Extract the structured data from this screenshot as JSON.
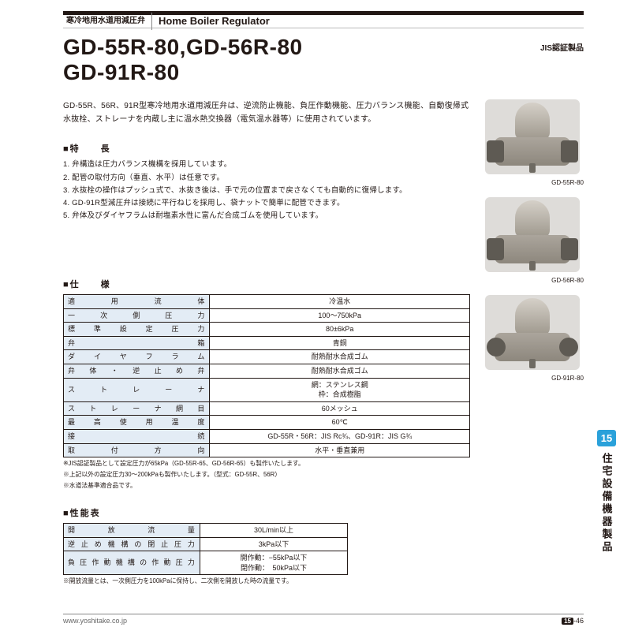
{
  "header": {
    "jp": "寒冷地用水道用減圧弁",
    "en": "Home Boiler Regulator"
  },
  "title_lines": [
    "GD-55R-80,GD-56R-80",
    "GD-91R-80"
  ],
  "cert": "JIS認証製品",
  "description": "GD-55R、56R、91R型寒冷地用水道用減圧弁は、逆流防止機能、負圧作動機能、圧力バランス機能、自動復帰式水抜栓、ストレーナを内蔵し主に温水熱交換器（電気温水器等）に使用されています。",
  "sec_features": "■特　　長",
  "features": [
    "1. 弁構造は圧力バランス機構を採用しています。",
    "2. 配管の取付方向（垂直、水平）は任意です。",
    "3. 水抜栓の操作はプッシュ式で、水抜き後は、手で元の位置まで戻さなくても自動的に復帰します。",
    "4. GD-91R型減圧弁は接続に平行ねじを採用し、袋ナットで簡単に配管できます。",
    "5. 弁体及びダイヤフラムは耐塩素水性に富んだ合成ゴムを使用しています。"
  ],
  "sec_spec": "■仕　　様",
  "spec_rows": [
    {
      "k": "適用流体",
      "v": "冷温水"
    },
    {
      "k": "一次側圧力",
      "v": "100〜750kPa"
    },
    {
      "k": "標準設定圧力",
      "v": "80±6kPa"
    },
    {
      "k": "弁箱",
      "v": "青銅"
    },
    {
      "k": "ダイヤフラム",
      "v": "耐熱耐水合成ゴム"
    },
    {
      "k": "弁体・逆止め弁",
      "v": "耐熱耐水合成ゴム"
    },
    {
      "k": "ストレーナ",
      "v": "網：ステンレス鋼\n枠：合成樹脂"
    },
    {
      "k": "ストレーナ網目",
      "v": "60メッシュ"
    },
    {
      "k": "最高使用温度",
      "v": "60℃"
    },
    {
      "k": "接続",
      "v": "GD-55R・56R：JIS Rc¾、GD-91R：JIS G¾"
    },
    {
      "k": "取付方向",
      "v": "水平・垂直兼用"
    }
  ],
  "spec_notes": [
    "※JIS認証製品として設定圧力が65kPa（GD-55R-65、GD-56R-65）も製作いたします。",
    "※上記以外の設定圧力30〜200kPaも製作いたします。（型式：GD-55R、56R）",
    "※水道法基準適合品です。"
  ],
  "sec_perf": "■性能表",
  "perf_rows": [
    {
      "k": "開放流量",
      "v": "30L/min以上"
    },
    {
      "k": "逆止め機構の閉止圧力",
      "v": "3kPa以下"
    },
    {
      "k": "負圧作動機構の作動圧力",
      "v": "開作動：−55kPa以下\n閉作動：　50kPa以下"
    }
  ],
  "perf_note": "※開放流量とは、一次側圧力を100kPaに保持し、二次側を開放した時の流量です。",
  "products": [
    {
      "label": "GD-55R-80"
    },
    {
      "label": "GD-56R-80"
    },
    {
      "label": "GD-91R-80"
    }
  ],
  "sidetab": {
    "num": "15",
    "text": "住宅設備機器製品"
  },
  "footer": {
    "url": "www.yoshitake.co.jp",
    "section": "15",
    "page": "-46"
  }
}
